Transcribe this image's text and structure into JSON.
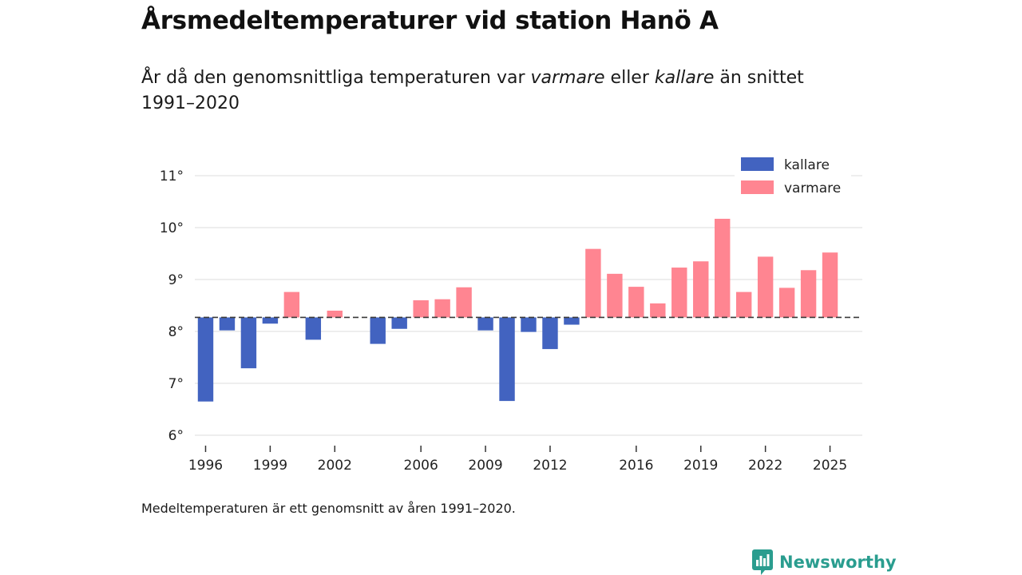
{
  "header": {
    "title": "Årsmedeltemperaturer vid station Hanö A",
    "subtitle_part1": "År då den genomsnittliga temperaturen var ",
    "subtitle_warm": "varmare",
    "subtitle_part2": " eller ",
    "subtitle_cold": "kallare",
    "subtitle_part3": " än snittet 1991–2020"
  },
  "footnote": "Medeltemperaturen är ett genomsnitt av åren 1991–2020.",
  "brand": {
    "name": "Newsworthy",
    "color": "#2a9d8f"
  },
  "chart_data": {
    "type": "bar",
    "baseline": 8.27,
    "ylim": [
      6,
      11
    ],
    "yticks": [
      6,
      7,
      8,
      9,
      10,
      11
    ],
    "ytick_labels": [
      "6°",
      "7°",
      "8°",
      "9°",
      "10°",
      "11°"
    ],
    "xlim": [
      1995.5,
      2026.5
    ],
    "xticks": [
      1996,
      1999,
      2002,
      2006,
      2009,
      2012,
      2016,
      2019,
      2022,
      2025
    ],
    "xtick_labels": [
      "1996",
      "1999",
      "2002",
      "2006",
      "2009",
      "2012",
      "2016",
      "2019",
      "2022",
      "2025"
    ],
    "colors": {
      "kallare": "#4263c0",
      "varmare": "#ff8591"
    },
    "legend": [
      {
        "key": "kallare",
        "label": "kallare"
      },
      {
        "key": "varmare",
        "label": "varmare"
      }
    ],
    "legend_position": "top-right",
    "grid": true,
    "years": [
      1996,
      1997,
      1998,
      1999,
      2000,
      2001,
      2002,
      2004,
      2005,
      2006,
      2007,
      2008,
      2009,
      2010,
      2011,
      2012,
      2013,
      2014,
      2015,
      2016,
      2017,
      2018,
      2019,
      2020,
      2021,
      2022,
      2023,
      2024,
      2025
    ],
    "values": [
      6.65,
      8.02,
      7.29,
      8.15,
      8.76,
      7.84,
      8.4,
      7.76,
      8.05,
      8.6,
      8.62,
      8.85,
      8.02,
      6.66,
      7.99,
      7.66,
      8.13,
      9.59,
      9.11,
      8.86,
      8.54,
      9.23,
      9.35,
      10.17,
      8.76,
      9.44,
      8.84,
      9.18,
      9.52
    ]
  }
}
